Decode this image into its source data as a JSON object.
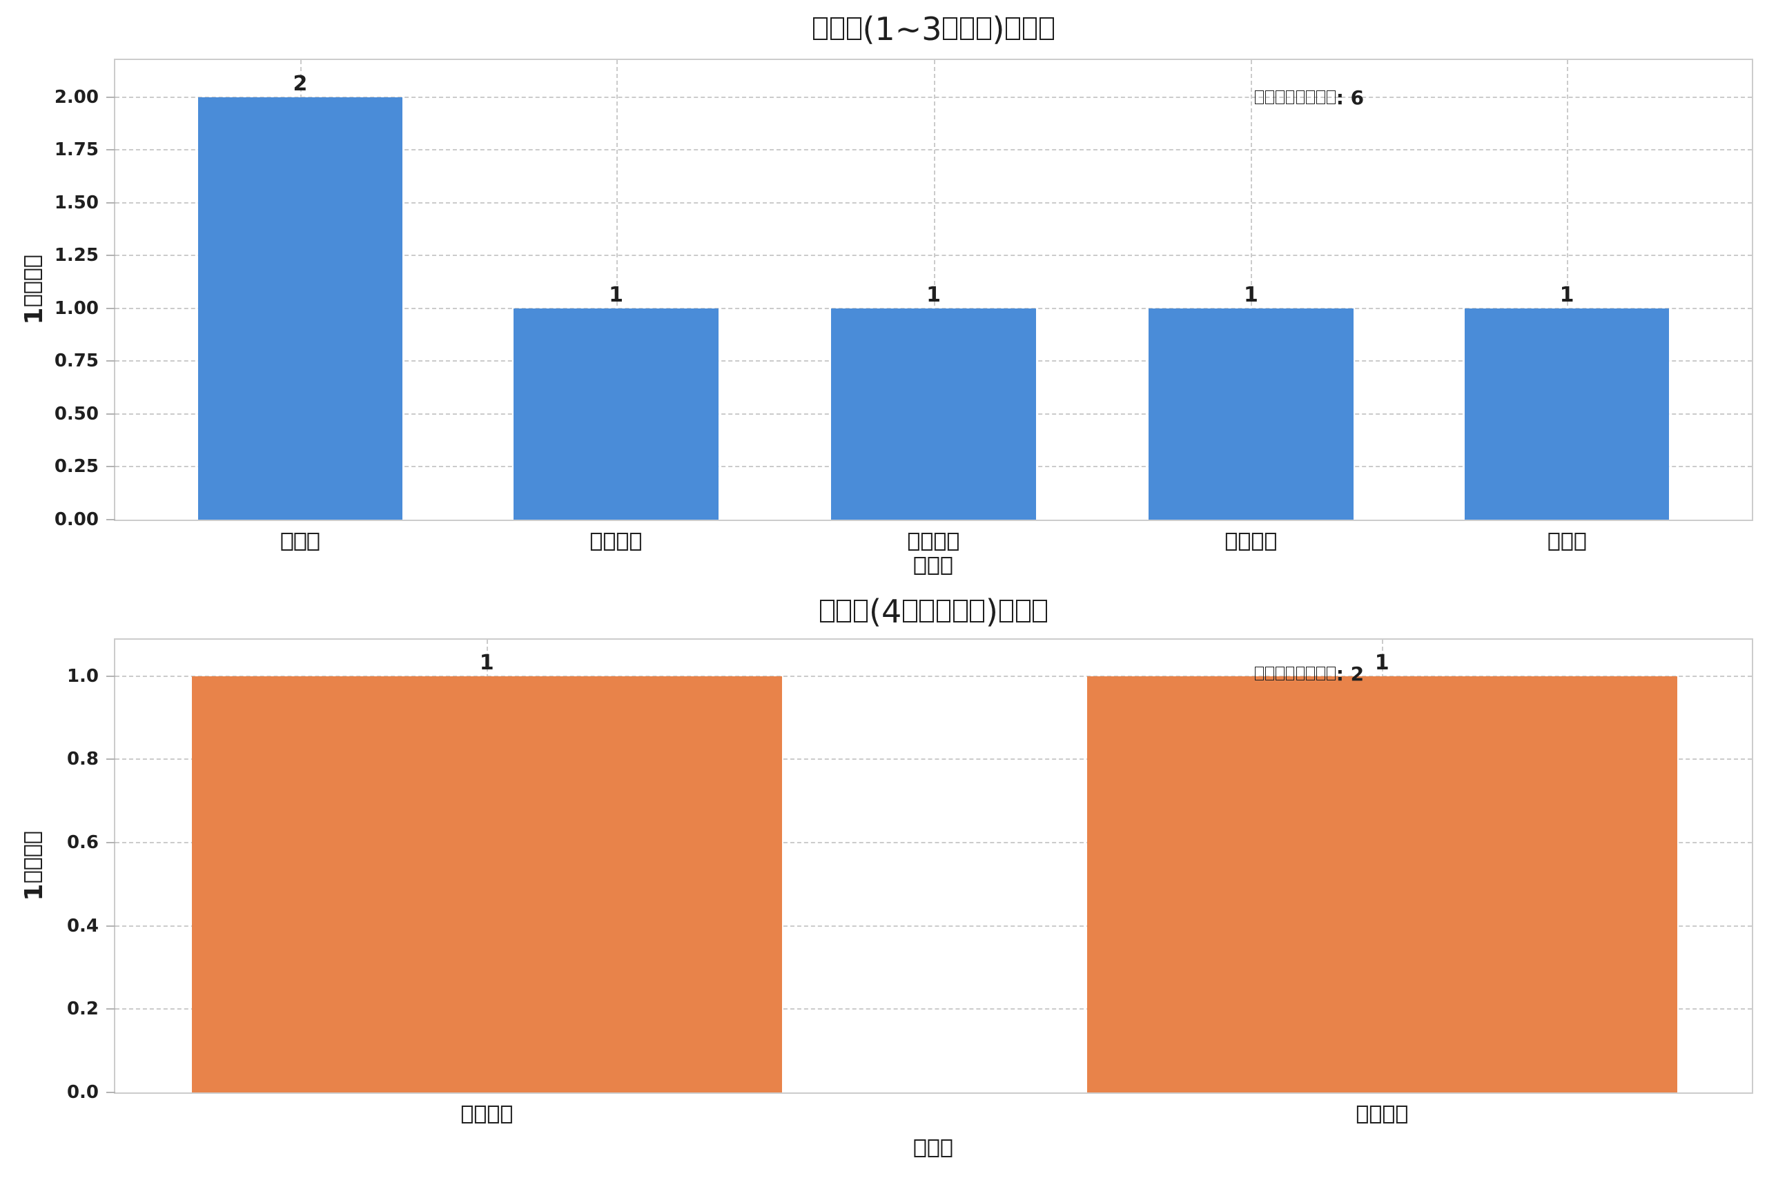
{
  "colors": {
    "bar_blue": "#4a8cd8",
    "bar_orange": "#e8834a",
    "grid": "#cbcbcb",
    "spine": "#cccccc",
    "text": "#1f1f1f"
  },
  "chart_data": [
    {
      "type": "bar",
      "title": "□□□(1~3□□□)□□□",
      "xlabel": "□□□",
      "ylabel": "1□□□□",
      "categories": [
        "□□□",
        "□□□□",
        "□□□□",
        "□□□□",
        "□□□"
      ],
      "values": [
        2,
        1,
        1,
        1,
        1
      ],
      "bar_labels": [
        "2",
        "1",
        "1",
        "1",
        "1"
      ],
      "annotation": "□□□□□□□□: 6",
      "yticks": [
        "0.00",
        "0.25",
        "0.50",
        "0.75",
        "1.00",
        "1.25",
        "1.50",
        "1.75",
        "2.00"
      ],
      "ylim": [
        0,
        2.175
      ],
      "bar_color": "#4a8cd8",
      "grid": "dashed",
      "legend": "none"
    },
    {
      "type": "bar",
      "title": "□□□(4□□□□□)□□□",
      "xlabel": "□□□",
      "ylabel": "1□□□□",
      "categories": [
        "□□□□",
        "□□□□"
      ],
      "values": [
        1,
        1
      ],
      "bar_labels": [
        "1",
        "1"
      ],
      "annotation": "□□□□□□□□: 2",
      "yticks": [
        "0.0",
        "0.2",
        "0.4",
        "0.6",
        "0.8",
        "1.0"
      ],
      "ylim": [
        0,
        1.0875
      ],
      "bar_color": "#e8834a",
      "grid": "dashed",
      "legend": "none"
    }
  ]
}
